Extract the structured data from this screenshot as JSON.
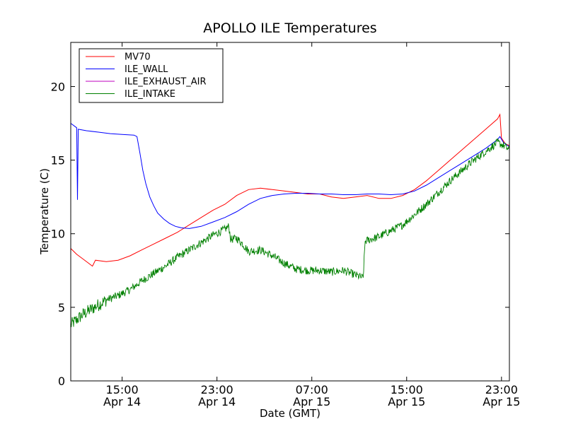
{
  "chart_data": {
    "type": "line",
    "title": "APOLLO ILE Temperatures",
    "xlabel": "Date (GMT)",
    "ylabel": "Temperature (C)",
    "x_unit": "hours",
    "xlim": [
      "2014-04-14T10:40",
      "2014-04-15T23:40"
    ],
    "ylim": [
      0,
      23
    ],
    "yticks": [
      0,
      5,
      10,
      15,
      20
    ],
    "xticks": [
      {
        "time": "15:00",
        "date": "Apr 14"
      },
      {
        "time": "23:00",
        "date": "Apr 14"
      },
      {
        "time": "07:00",
        "date": "Apr 15"
      },
      {
        "time": "15:00",
        "date": "Apr 15"
      },
      {
        "time": "23:00",
        "date": "Apr 15"
      }
    ],
    "grid": false,
    "legend": "upper-left",
    "series": [
      {
        "name": "MV70",
        "color": "#ff0000",
        "points": [
          [
            "2014-04-14T10:40",
            9.0
          ],
          [
            "2014-04-14T11:10",
            8.6
          ],
          [
            "2014-04-14T11:40",
            8.3
          ],
          [
            "2014-04-14T12:10",
            8.0
          ],
          [
            "2014-04-14T12:30",
            7.8
          ],
          [
            "2014-04-14T12:45",
            8.2
          ],
          [
            "2014-04-14T13:40",
            8.1
          ],
          [
            "2014-04-14T14:40",
            8.2
          ],
          [
            "2014-04-14T15:40",
            8.5
          ],
          [
            "2014-04-14T16:40",
            8.9
          ],
          [
            "2014-04-14T17:40",
            9.3
          ],
          [
            "2014-04-14T18:40",
            9.7
          ],
          [
            "2014-04-14T19:40",
            10.1
          ],
          [
            "2014-04-14T20:40",
            10.6
          ],
          [
            "2014-04-14T21:40",
            11.1
          ],
          [
            "2014-04-14T22:40",
            11.6
          ],
          [
            "2014-04-14T23:40",
            12.0
          ],
          [
            "2014-04-15T00:40",
            12.6
          ],
          [
            "2014-04-15T01:40",
            13.0
          ],
          [
            "2014-04-15T02:40",
            13.1
          ],
          [
            "2014-04-15T03:40",
            13.0
          ],
          [
            "2014-04-15T04:40",
            12.9
          ],
          [
            "2014-04-15T05:40",
            12.8
          ],
          [
            "2014-04-15T06:40",
            12.7
          ],
          [
            "2014-04-15T07:40",
            12.7
          ],
          [
            "2014-04-15T08:40",
            12.5
          ],
          [
            "2014-04-15T09:40",
            12.4
          ],
          [
            "2014-04-15T10:40",
            12.5
          ],
          [
            "2014-04-15T11:40",
            12.6
          ],
          [
            "2014-04-15T12:40",
            12.4
          ],
          [
            "2014-04-15T13:40",
            12.4
          ],
          [
            "2014-04-15T14:40",
            12.6
          ],
          [
            "2014-04-15T15:40",
            13.0
          ],
          [
            "2014-04-15T16:40",
            13.6
          ],
          [
            "2014-04-15T17:40",
            14.3
          ],
          [
            "2014-04-15T18:40",
            15.0
          ],
          [
            "2014-04-15T19:40",
            15.7
          ],
          [
            "2014-04-15T20:40",
            16.4
          ],
          [
            "2014-04-15T21:40",
            17.1
          ],
          [
            "2014-04-15T22:40",
            17.8
          ],
          [
            "2014-04-15T22:52",
            18.1
          ],
          [
            "2014-04-15T23:00",
            16.5
          ],
          [
            "2014-04-15T23:20",
            16.1
          ],
          [
            "2014-04-15T23:40",
            16.0
          ]
        ]
      },
      {
        "name": "ILE_WALL",
        "color": "#0000ff",
        "points": [
          [
            "2014-04-14T10:40",
            17.5
          ],
          [
            "2014-04-14T11:00",
            17.3
          ],
          [
            "2014-04-14T11:10",
            17.2
          ],
          [
            "2014-04-14T11:14",
            12.3
          ],
          [
            "2014-04-14T11:18",
            17.1
          ],
          [
            "2014-04-14T12:00",
            17.0
          ],
          [
            "2014-04-14T13:00",
            16.9
          ],
          [
            "2014-04-14T14:00",
            16.8
          ],
          [
            "2014-04-14T15:00",
            16.75
          ],
          [
            "2014-04-14T16:00",
            16.7
          ],
          [
            "2014-04-14T16:15",
            16.6
          ],
          [
            "2014-04-14T16:30",
            15.5
          ],
          [
            "2014-04-14T16:45",
            14.3
          ],
          [
            "2014-04-14T17:00",
            13.4
          ],
          [
            "2014-04-14T17:20",
            12.5
          ],
          [
            "2014-04-14T17:40",
            11.9
          ],
          [
            "2014-04-14T18:00",
            11.4
          ],
          [
            "2014-04-14T18:30",
            11.0
          ],
          [
            "2014-04-14T19:00",
            10.7
          ],
          [
            "2014-04-14T19:30",
            10.5
          ],
          [
            "2014-04-14T20:00",
            10.4
          ],
          [
            "2014-04-14T20:40",
            10.35
          ],
          [
            "2014-04-14T21:40",
            10.5
          ],
          [
            "2014-04-14T22:40",
            10.8
          ],
          [
            "2014-04-14T23:40",
            11.1
          ],
          [
            "2014-04-15T00:40",
            11.5
          ],
          [
            "2014-04-15T01:40",
            12.0
          ],
          [
            "2014-04-15T02:40",
            12.4
          ],
          [
            "2014-04-15T03:40",
            12.6
          ],
          [
            "2014-04-15T04:40",
            12.7
          ],
          [
            "2014-04-15T05:40",
            12.75
          ],
          [
            "2014-04-15T06:40",
            12.75
          ],
          [
            "2014-04-15T07:40",
            12.7
          ],
          [
            "2014-04-15T08:40",
            12.7
          ],
          [
            "2014-04-15T09:40",
            12.65
          ],
          [
            "2014-04-15T10:40",
            12.65
          ],
          [
            "2014-04-15T11:40",
            12.7
          ],
          [
            "2014-04-15T12:40",
            12.7
          ],
          [
            "2014-04-15T13:40",
            12.65
          ],
          [
            "2014-04-15T14:40",
            12.7
          ],
          [
            "2014-04-15T15:40",
            12.9
          ],
          [
            "2014-04-15T16:40",
            13.3
          ],
          [
            "2014-04-15T17:40",
            13.8
          ],
          [
            "2014-04-15T18:40",
            14.3
          ],
          [
            "2014-04-15T19:40",
            14.8
          ],
          [
            "2014-04-15T20:40",
            15.3
          ],
          [
            "2014-04-15T21:40",
            15.8
          ],
          [
            "2014-04-15T22:40",
            16.4
          ],
          [
            "2014-04-15T22:52",
            16.6
          ],
          [
            "2014-04-15T23:10",
            16.2
          ],
          [
            "2014-04-15T23:40",
            15.9
          ]
        ]
      },
      {
        "name": "ILE_EXHAUST_AIR",
        "color": "#bf00bf",
        "points": []
      },
      {
        "name": "ILE_INTAKE",
        "color": "#008000",
        "points": [
          [
            "2014-04-14T10:40",
            3.8
          ],
          [
            "2014-04-14T11:40",
            4.5
          ],
          [
            "2014-04-14T12:40",
            5.0
          ],
          [
            "2014-04-14T13:40",
            5.5
          ],
          [
            "2014-04-14T14:40",
            5.8
          ],
          [
            "2014-04-14T15:40",
            6.2
          ],
          [
            "2014-04-14T16:40",
            6.8
          ],
          [
            "2014-04-14T17:40",
            7.3
          ],
          [
            "2014-04-14T18:40",
            7.8
          ],
          [
            "2014-04-14T19:40",
            8.4
          ],
          [
            "2014-04-14T20:40",
            8.9
          ],
          [
            "2014-04-14T21:40",
            9.4
          ],
          [
            "2014-04-14T22:40",
            9.9
          ],
          [
            "2014-04-14T23:40",
            10.3
          ],
          [
            "2014-04-15T00:00",
            10.5
          ],
          [
            "2014-04-15T00:10",
            9.6
          ],
          [
            "2014-04-15T00:40",
            9.7
          ],
          [
            "2014-04-15T01:10",
            9.3
          ],
          [
            "2014-04-15T01:40",
            8.8
          ],
          [
            "2014-04-15T02:40",
            8.9
          ],
          [
            "2014-04-15T03:40",
            8.5
          ],
          [
            "2014-04-15T04:40",
            8.0
          ],
          [
            "2014-04-15T05:40",
            7.6
          ],
          [
            "2014-04-15T06:40",
            7.5
          ],
          [
            "2014-04-15T07:40",
            7.5
          ],
          [
            "2014-04-15T08:40",
            7.4
          ],
          [
            "2014-04-15T09:40",
            7.5
          ],
          [
            "2014-04-15T10:40",
            7.2
          ],
          [
            "2014-04-15T11:20",
            7.0
          ],
          [
            "2014-04-15T11:30",
            9.5
          ],
          [
            "2014-04-15T12:40",
            9.8
          ],
          [
            "2014-04-15T13:40",
            10.2
          ],
          [
            "2014-04-15T14:40",
            10.6
          ],
          [
            "2014-04-15T15:40",
            11.3
          ],
          [
            "2014-04-15T16:40",
            12.0
          ],
          [
            "2014-04-15T17:40",
            12.8
          ],
          [
            "2014-04-15T18:40",
            13.6
          ],
          [
            "2014-04-15T19:40",
            14.3
          ],
          [
            "2014-04-15T20:40",
            15.0
          ],
          [
            "2014-04-15T21:40",
            15.6
          ],
          [
            "2014-04-15T22:40",
            16.2
          ],
          [
            "2014-04-15T23:10",
            16.0
          ],
          [
            "2014-04-15T23:40",
            15.7
          ]
        ]
      }
    ]
  }
}
